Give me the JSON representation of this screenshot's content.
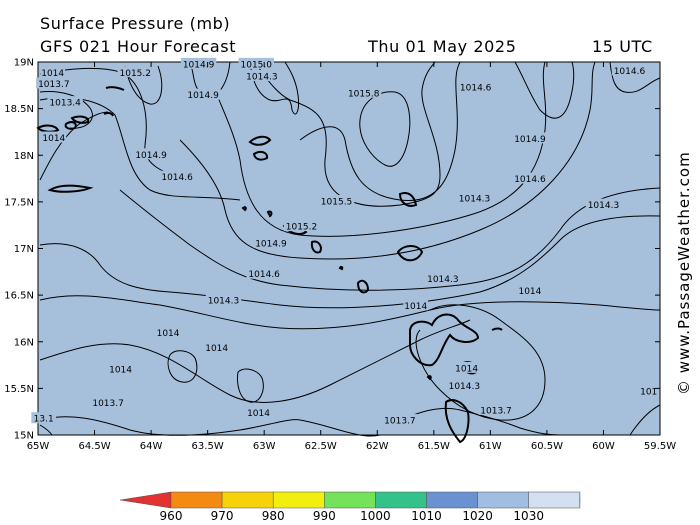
{
  "header": {
    "title": "Surface Pressure (mb)",
    "subtitle": "GFS 021 Hour Forecast",
    "date": "Thu 01 May 2025",
    "time": "15 UTC"
  },
  "credit": "© www.PassageWeather.com",
  "map": {
    "lon_range": [
      -65.0,
      -59.5
    ],
    "lat_range": [
      15.0,
      19.0
    ],
    "background_color": "#a6c0dc",
    "x_tick_labels": [
      "65W",
      "64.5W",
      "64W",
      "63.5W",
      "63W",
      "62.5W",
      "62W",
      "61.5W",
      "61W",
      "60.5W",
      "60W",
      "59.5W"
    ],
    "y_tick_labels": [
      "19N",
      "18.5N",
      "18N",
      "17.5N",
      "17N",
      "16.5N",
      "16N",
      "15.5N",
      "15N"
    ],
    "isobar_labels": [
      {
        "text": "1014",
        "lon": -64.87,
        "lat": 18.89
      },
      {
        "text": "1013.7",
        "lon": -64.86,
        "lat": 18.77
      },
      {
        "text": "1013.4",
        "lon": -64.76,
        "lat": 18.57
      },
      {
        "text": "1014",
        "lon": -64.86,
        "lat": 18.19
      },
      {
        "text": "1015.2",
        "lon": -64.14,
        "lat": 18.89
      },
      {
        "text": "1014.9",
        "lon": -63.58,
        "lat": 18.98
      },
      {
        "text": "1015.0",
        "lon": -63.07,
        "lat": 18.98
      },
      {
        "text": "1014.3",
        "lon": -63.02,
        "lat": 18.85
      },
      {
        "text": "1014.9",
        "lon": -63.54,
        "lat": 18.65
      },
      {
        "text": "1015.8",
        "lon": -62.12,
        "lat": 18.67
      },
      {
        "text": "1014.6",
        "lon": -61.13,
        "lat": 18.73
      },
      {
        "text": "1014.6",
        "lon": -59.77,
        "lat": 18.91
      },
      {
        "text": "1014.9",
        "lon": -64.0,
        "lat": 18.01
      },
      {
        "text": "1014.9",
        "lon": -60.65,
        "lat": 18.18
      },
      {
        "text": "1014.6",
        "lon": -63.77,
        "lat": 17.77
      },
      {
        "text": "1014.6",
        "lon": -60.65,
        "lat": 17.75
      },
      {
        "text": "1015.5",
        "lon": -62.36,
        "lat": 17.51
      },
      {
        "text": "1014.3",
        "lon": -61.14,
        "lat": 17.54
      },
      {
        "text": "1014.3",
        "lon": -60.0,
        "lat": 17.47
      },
      {
        "text": "1015.2",
        "lon": -62.67,
        "lat": 17.24
      },
      {
        "text": "1014.9",
        "lon": -62.94,
        "lat": 17.06
      },
      {
        "text": "1014.6",
        "lon": -63.0,
        "lat": 16.73
      },
      {
        "text": "1014.3",
        "lon": -61.42,
        "lat": 16.68
      },
      {
        "text": "1014",
        "lon": -60.65,
        "lat": 16.55
      },
      {
        "text": "1014.3",
        "lon": -63.36,
        "lat": 16.45
      },
      {
        "text": "1014",
        "lon": -61.66,
        "lat": 16.39
      },
      {
        "text": "1014",
        "lon": -63.85,
        "lat": 16.1
      },
      {
        "text": "1014",
        "lon": -63.42,
        "lat": 15.94
      },
      {
        "text": "1014",
        "lon": -64.27,
        "lat": 15.71
      },
      {
        "text": "1014",
        "lon": -61.21,
        "lat": 15.72
      },
      {
        "text": "1014.3",
        "lon": -61.23,
        "lat": 15.53
      },
      {
        "text": "1013.7",
        "lon": -64.38,
        "lat": 15.35
      },
      {
        "text": "1014",
        "lon": -63.05,
        "lat": 15.24
      },
      {
        "text": "1013.7",
        "lon": -61.8,
        "lat": 15.16
      },
      {
        "text": "1013.7",
        "lon": -60.95,
        "lat": 15.27
      },
      {
        "text": "101",
        "lon": -59.6,
        "lat": 15.47
      },
      {
        "text": "13.1",
        "lon": -64.95,
        "lat": 15.18
      }
    ]
  },
  "colorbar": {
    "ticks": [
      "960",
      "970",
      "980",
      "990",
      "1000",
      "1010",
      "1020",
      "1030"
    ],
    "colors": [
      "#e23232",
      "#f48a12",
      "#f6d20a",
      "#f2ee10",
      "#74e25a",
      "#34c28a",
      "#6a92d0",
      "#a2bde2",
      "#d2e0f2",
      "#ffffff"
    ]
  }
}
